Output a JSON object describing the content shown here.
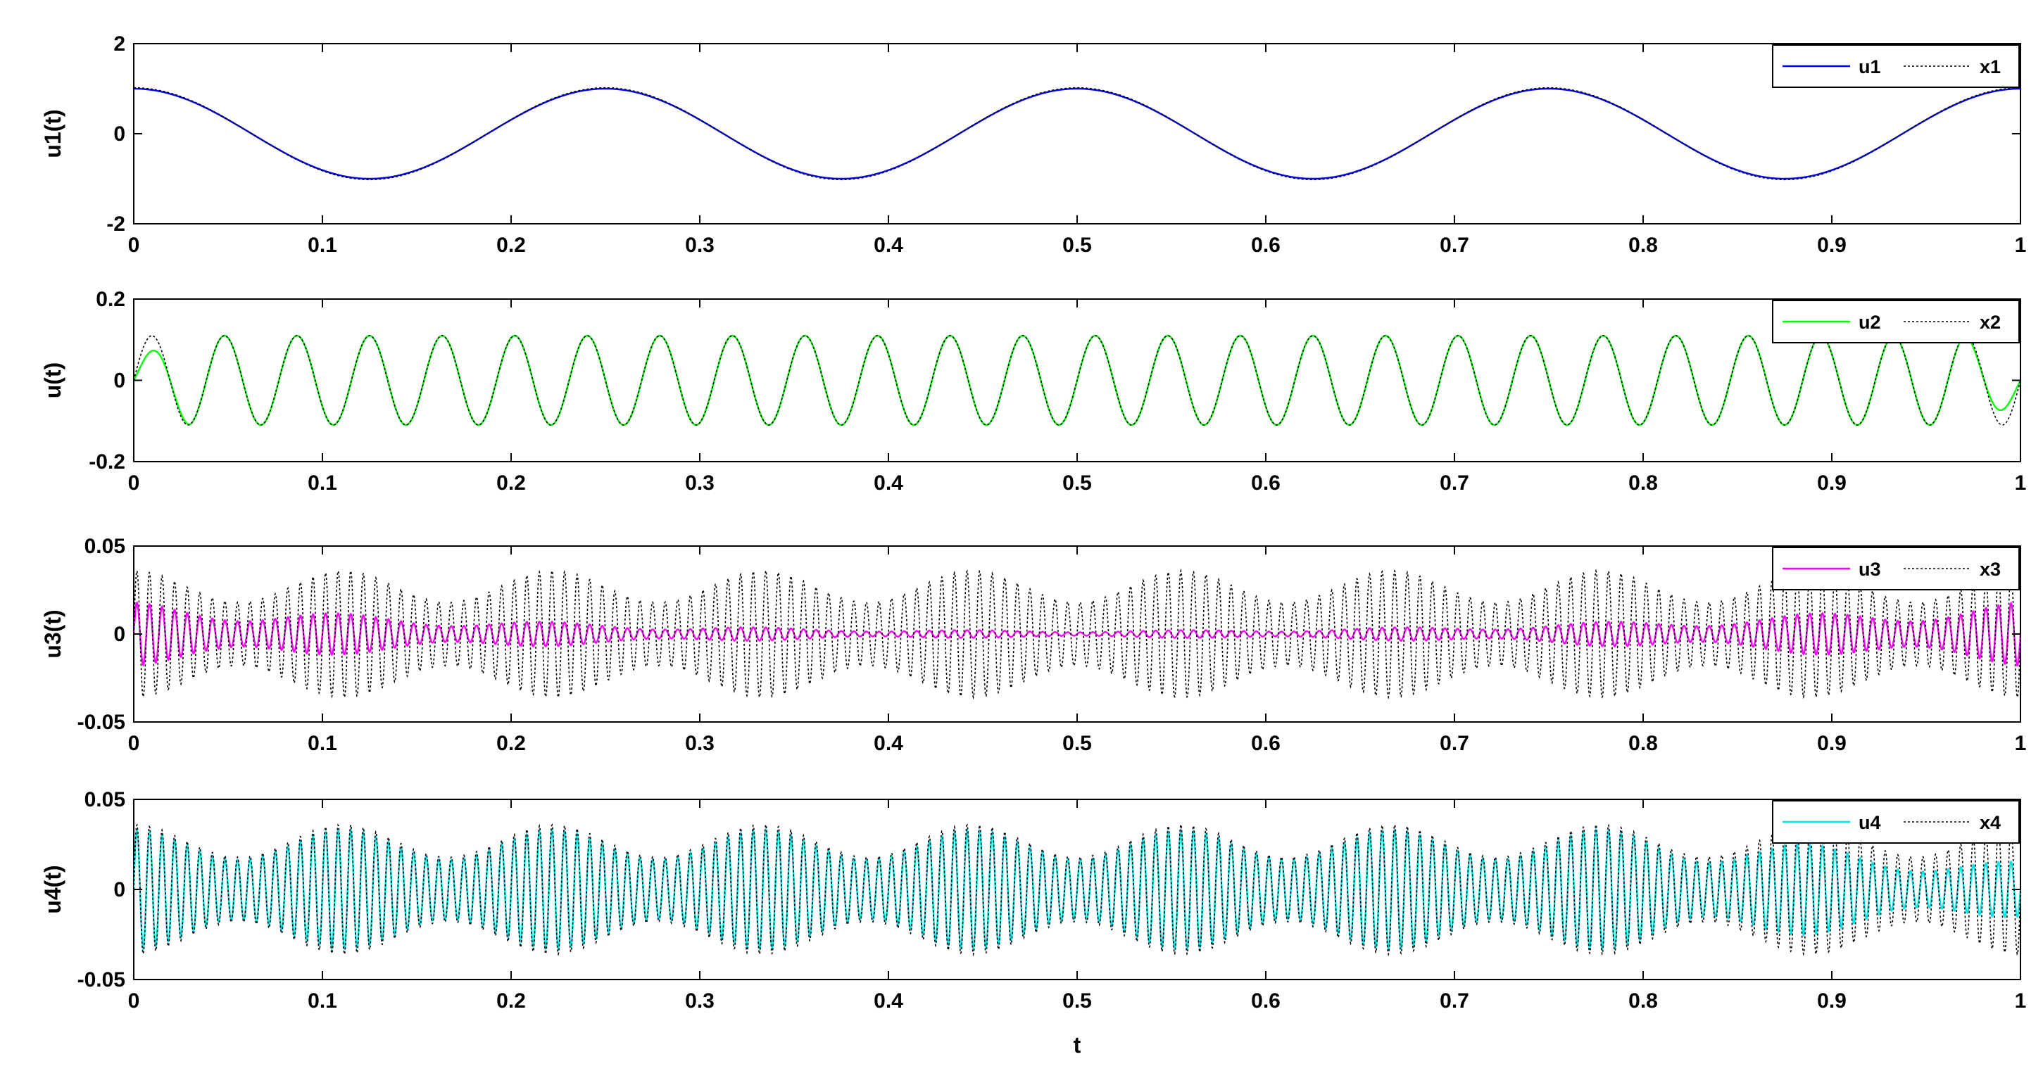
{
  "figure": {
    "xlabel": "t"
  },
  "chart_data": [
    {
      "type": "line",
      "panel": 1,
      "ylabel": "u1(t)",
      "xlim": [
        0,
        1
      ],
      "ylim": [
        -2,
        2
      ],
      "x_ticks": [
        0,
        0.1,
        0.2,
        0.3,
        0.4,
        0.5,
        0.6,
        0.7,
        0.8,
        0.9,
        1
      ],
      "x_tick_labels": [
        "0",
        "0.1",
        "0.2",
        "0.3",
        "0.4",
        "0.5",
        "0.6",
        "0.7",
        "0.8",
        "0.9",
        "1"
      ],
      "y_ticks": [
        -2,
        0,
        2
      ],
      "y_tick_labels": [
        "-2",
        "0",
        "2"
      ],
      "grid": false,
      "legend_position": "top-right",
      "series": [
        {
          "name": "u1",
          "style": "solid",
          "color": "#0000ff",
          "signal": {
            "kind": "cos",
            "amplitude": 1.0,
            "frequency_hz": 4,
            "decay_to_center": 0
          }
        },
        {
          "name": "x1",
          "style": "dotted",
          "color": "#000000",
          "signal": {
            "kind": "cos",
            "amplitude": 1.02,
            "frequency_hz": 4
          }
        }
      ]
    },
    {
      "type": "line",
      "panel": 2,
      "ylabel": "u(t)",
      "xlim": [
        0,
        1
      ],
      "ylim": [
        -0.2,
        0.2
      ],
      "x_ticks": [
        0,
        0.1,
        0.2,
        0.3,
        0.4,
        0.5,
        0.6,
        0.7,
        0.8,
        0.9,
        1
      ],
      "x_tick_labels": [
        "0",
        "0.1",
        "0.2",
        "0.3",
        "0.4",
        "0.5",
        "0.6",
        "0.7",
        "0.8",
        "0.9",
        "1"
      ],
      "y_ticks": [
        -0.2,
        0,
        0.2
      ],
      "y_tick_labels": [
        "-0.2",
        "0",
        "0.2"
      ],
      "grid": false,
      "legend_position": "top-right",
      "series": [
        {
          "name": "u2",
          "style": "solid",
          "color": "#00ff00",
          "signal": {
            "kind": "sin",
            "amplitude": 0.11,
            "frequency_hz": 26,
            "edge_amplitude": 0.055
          }
        },
        {
          "name": "x2",
          "style": "dotted",
          "color": "#000000",
          "signal": {
            "kind": "sin",
            "amplitude": 0.11,
            "frequency_hz": 26
          }
        }
      ]
    },
    {
      "type": "line",
      "panel": 3,
      "ylabel": "u3(t)",
      "xlim": [
        0,
        1
      ],
      "ylim": [
        -0.05,
        0.05
      ],
      "x_ticks": [
        0,
        0.1,
        0.2,
        0.3,
        0.4,
        0.5,
        0.6,
        0.7,
        0.8,
        0.9,
        1
      ],
      "x_tick_labels": [
        "0",
        "0.1",
        "0.2",
        "0.3",
        "0.4",
        "0.5",
        "0.6",
        "0.7",
        "0.8",
        "0.9",
        "1"
      ],
      "y_ticks": [
        -0.05,
        0,
        0.05
      ],
      "y_tick_labels": [
        "-0.05",
        "0",
        "0.05"
      ],
      "grid": false,
      "legend_position": "top-right",
      "series": [
        {
          "name": "u3",
          "style": "solid",
          "color": "#ff00ff",
          "signal": {
            "kind": "oscillation",
            "amplitude": 0.018,
            "center_amplitude": 0.002,
            "frequency_hz": 150
          }
        },
        {
          "name": "x3",
          "style": "dotted",
          "color": "#000000",
          "signal": {
            "kind": "oscillation",
            "amplitude": 0.036,
            "center_amplitude": 0.036,
            "frequency_hz": 150
          }
        }
      ]
    },
    {
      "type": "line",
      "panel": 4,
      "ylabel": "u4(t)",
      "xlim": [
        0,
        1
      ],
      "ylim": [
        -0.05,
        0.05
      ],
      "x_ticks": [
        0,
        0.1,
        0.2,
        0.3,
        0.4,
        0.5,
        0.6,
        0.7,
        0.8,
        0.9,
        1
      ],
      "x_tick_labels": [
        "0",
        "0.1",
        "0.2",
        "0.3",
        "0.4",
        "0.5",
        "0.6",
        "0.7",
        "0.8",
        "0.9",
        "1"
      ],
      "y_ticks": [
        -0.05,
        0,
        0.05
      ],
      "y_tick_labels": [
        "-0.05",
        "0",
        "0.05"
      ],
      "grid": false,
      "legend_position": "top-right",
      "series": [
        {
          "name": "u4",
          "style": "solid",
          "color": "#00e5e5",
          "signal": {
            "kind": "oscillation",
            "amplitude": 0.033,
            "end_amplitude": 0.015,
            "frequency_hz": 150
          }
        },
        {
          "name": "x4",
          "style": "dotted",
          "color": "#000000",
          "signal": {
            "kind": "oscillation",
            "amplitude": 0.036,
            "frequency_hz": 150
          }
        }
      ]
    }
  ]
}
